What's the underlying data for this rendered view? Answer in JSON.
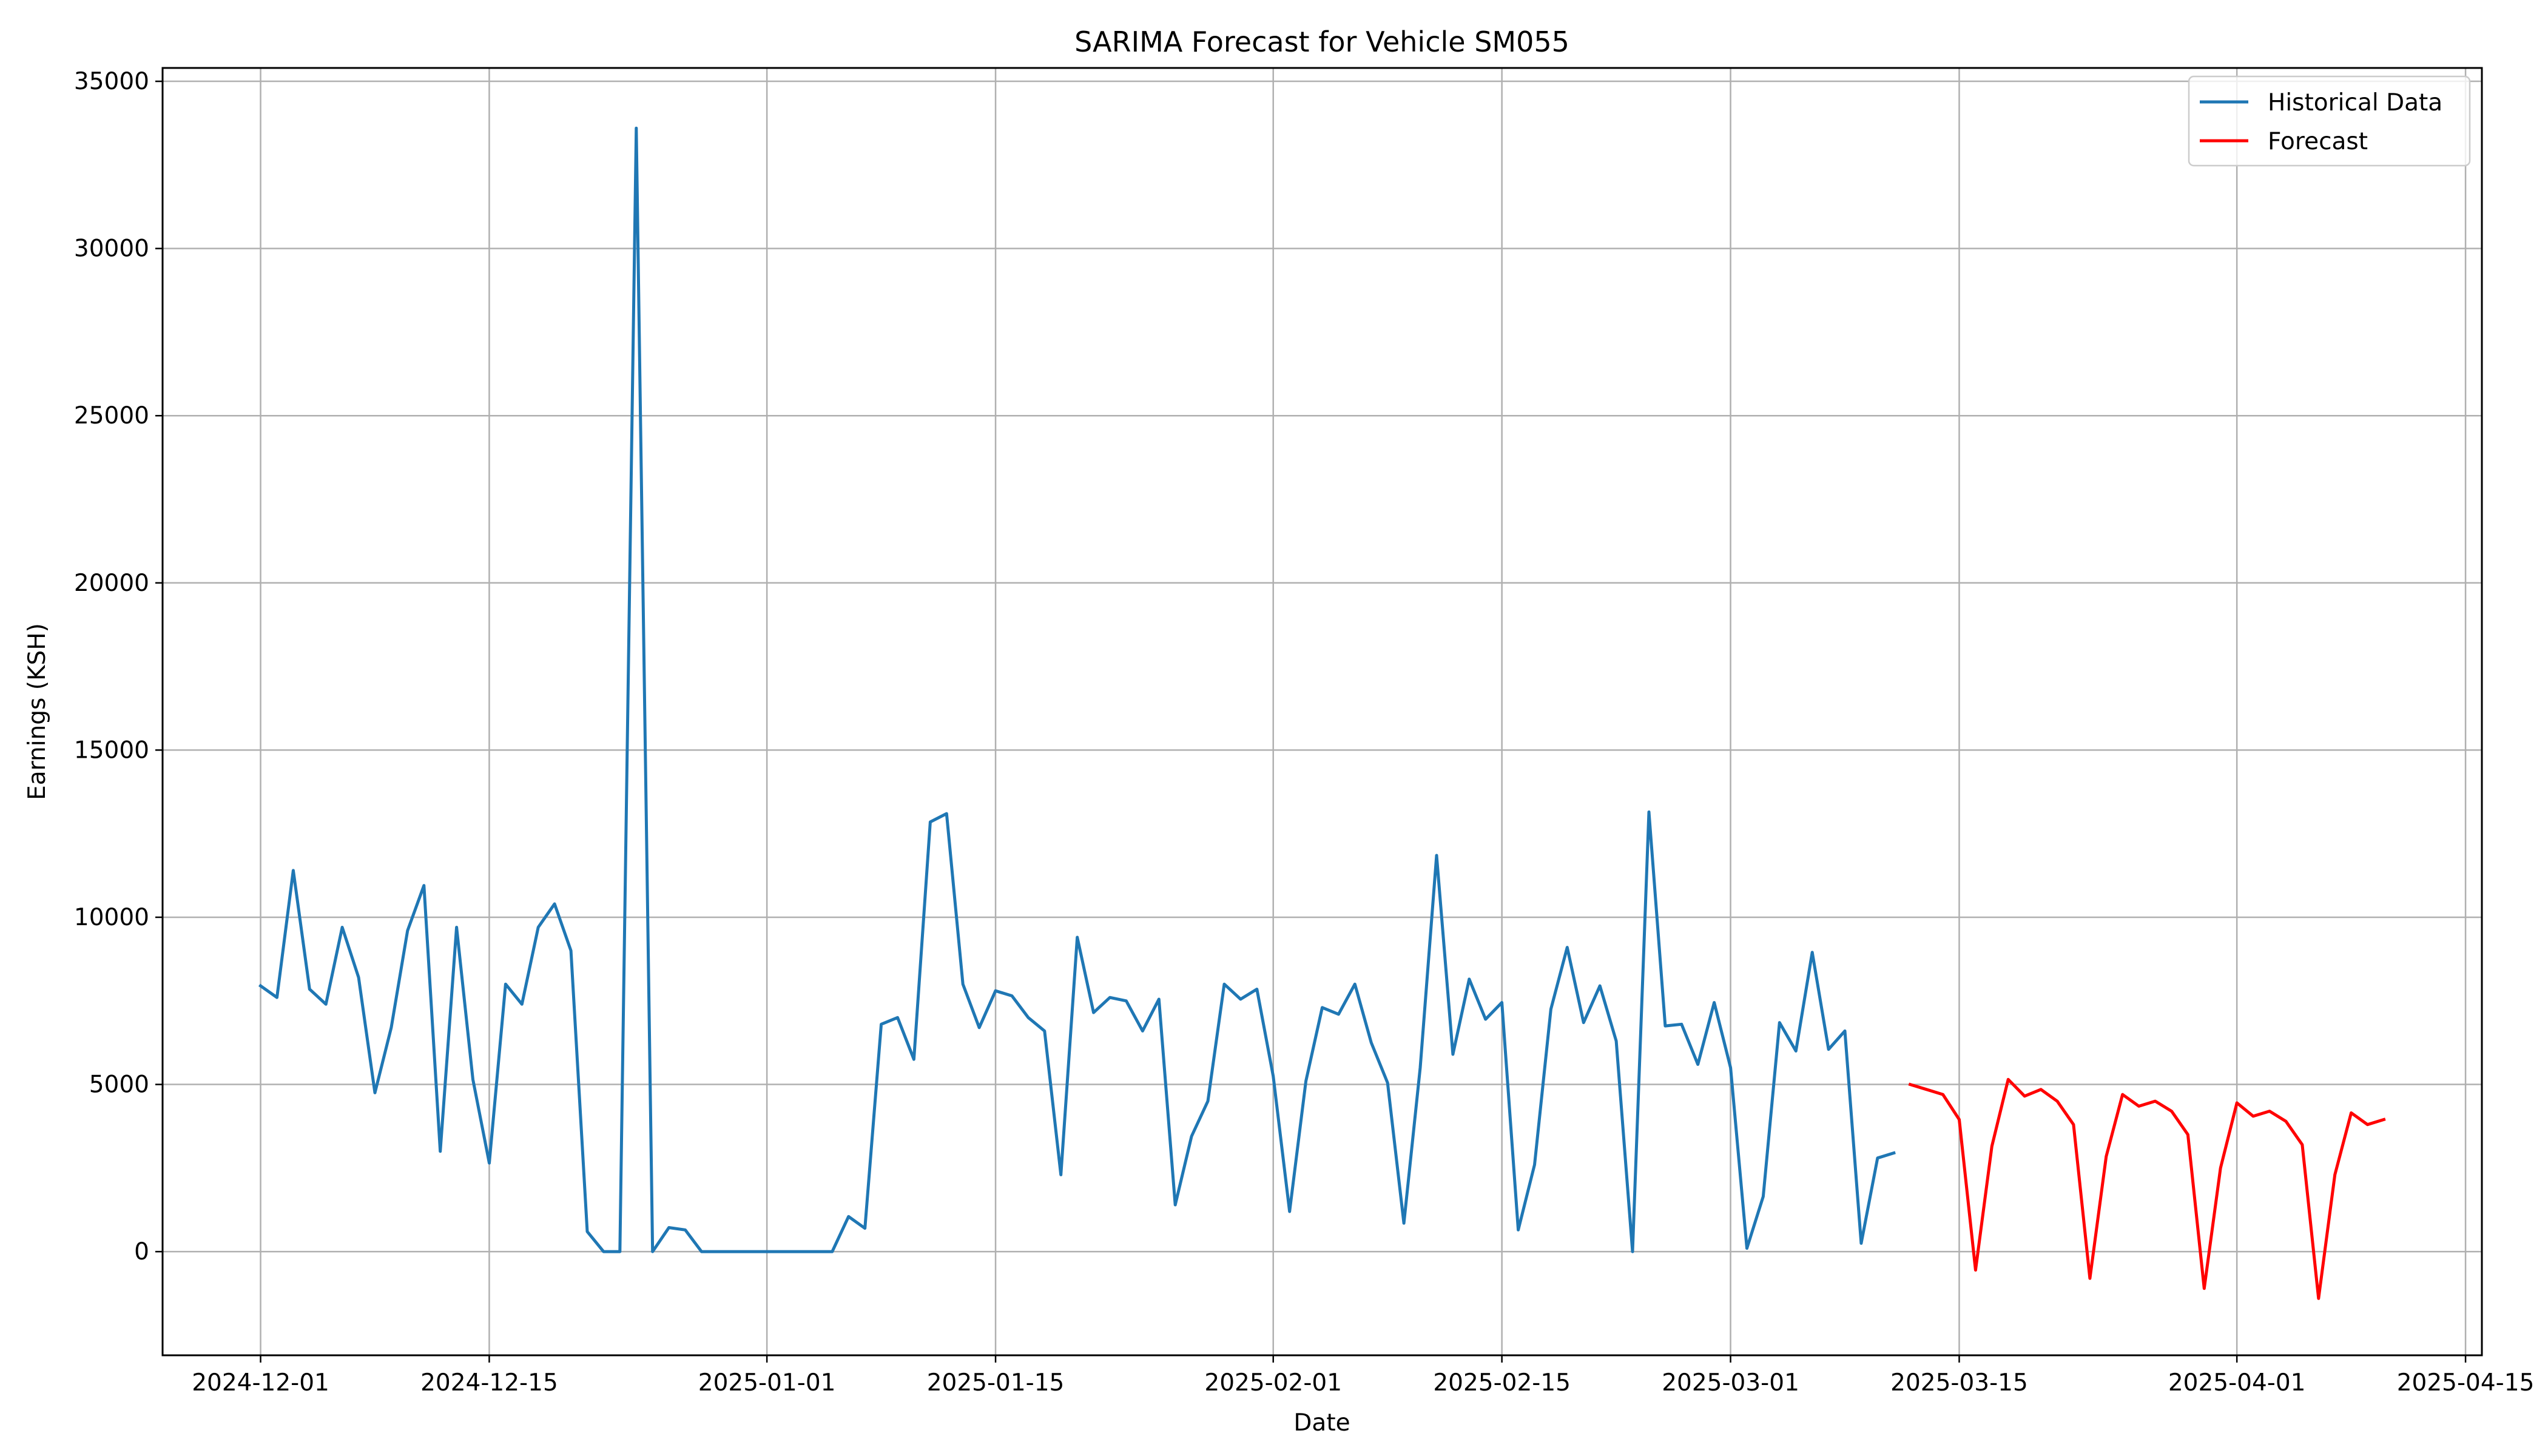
{
  "chart_data": {
    "type": "line",
    "title": "SARIMA Forecast for Vehicle SM055",
    "xlabel": "Date",
    "ylabel": "Earnings (KSH)",
    "ylim": [
      -3100,
      35400
    ],
    "xlim": [
      "2024-11-25",
      "2025-04-16"
    ],
    "yticks": [
      0,
      5000,
      10000,
      15000,
      20000,
      25000,
      30000,
      35000
    ],
    "xticks": [
      "2024-12-01",
      "2024-12-15",
      "2025-01-01",
      "2025-01-15",
      "2025-02-01",
      "2025-02-15",
      "2025-03-01",
      "2025-03-15",
      "2025-04-01",
      "2025-04-15"
    ],
    "grid": true,
    "legend_position": "top-right",
    "series": [
      {
        "name": "Historical Data",
        "color": "#1f77b4",
        "start": "2024-12-01",
        "values": [
          7950,
          7600,
          11400,
          7850,
          7400,
          9700,
          8200,
          4750,
          6700,
          9600,
          10950,
          3000,
          9700,
          5150,
          2650,
          8000,
          7400,
          9700,
          10400,
          9000,
          600,
          0,
          0,
          33600,
          0,
          720,
          650,
          0,
          0,
          0,
          0,
          0,
          0,
          0,
          0,
          0,
          1050,
          700,
          6800,
          7000,
          5750,
          12850,
          13100,
          8000,
          6700,
          7800,
          7650,
          7000,
          6600,
          2300,
          9400,
          7150,
          7600,
          7500,
          6600,
          7550,
          1400,
          3450,
          4500,
          8000,
          7550,
          7850,
          5250,
          1200,
          5100,
          7300,
          7100,
          8000,
          6250,
          5050,
          850,
          5500,
          11850,
          5900,
          8150,
          6950,
          7450,
          650,
          2600,
          7250,
          9100,
          6850,
          7950,
          6300,
          0,
          13150,
          6750,
          6800,
          5600,
          7450,
          5500,
          100,
          1650,
          6850,
          6000,
          8950,
          6050,
          6600,
          250,
          2800,
          2950
        ]
      },
      {
        "name": "Forecast",
        "color": "#ff0000",
        "start": "2025-03-12",
        "values": [
          5000,
          4850,
          4700,
          3950,
          -550,
          3150,
          5150,
          4650,
          4850,
          4500,
          3800,
          -800,
          2850,
          4700,
          4350,
          4500,
          4200,
          3500,
          -1100,
          2500,
          4450,
          4050,
          4200,
          3900,
          3200,
          -1400,
          2300,
          4150,
          3800,
          3950
        ]
      }
    ]
  }
}
